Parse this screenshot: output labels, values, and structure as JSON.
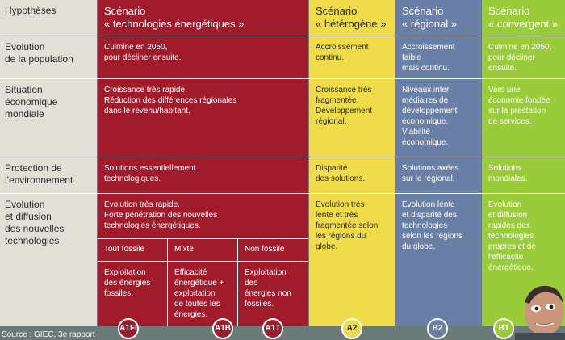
{
  "colors": {
    "hyp_bg": "#e2e0d6",
    "red": "#a01c2c",
    "yellow": "#f0dc4a",
    "blue": "#6a7fa6",
    "green": "#9acb3a",
    "page_bg": "#6a7a76",
    "grid": "#ffffff"
  },
  "header": {
    "hypotheses": "Hypothèses",
    "red": "Scénario\n« technologies énergétiques »",
    "yellow": "Scénario\n« hétérogène »",
    "blue": "Scénario\n« régional »",
    "green": "Scénario\n« convergent »"
  },
  "rows": {
    "population": {
      "label": "Evolution\nde la population",
      "red": "Culmine en 2050,\npour décliner ensuite.",
      "yellow": "Accroissement\ncontinu.",
      "blue": "Accroissement\nfaible\nmais continu.",
      "green": "Culmine en 2050,\npour décliner\nensuite."
    },
    "economy": {
      "label": "Situation\néconomique\nmondiale",
      "red": "Croissance très rapide.\nRéduction des différences régionales\ndans le revenu/habitant.",
      "yellow": "Croissance très\nfragmentée.\nDéveloppement\nrégional.",
      "blue": "Niveaux inter-\nmédiaires de\ndéveloppement\néconomique.\nViabilité\néconomique.",
      "green": "Vers une\néconomie fondée\nsur la prestation\nde services."
    },
    "environment": {
      "label": "Protection de\nl'environnement",
      "red": "Solutions essentiellement\ntechnologiques.",
      "yellow": "Disparité\ndes solutions.",
      "blue": "Solutions axées\nsur le régional.",
      "green": "Solutions\nmondiales."
    },
    "technology": {
      "label": "Evolution\net diffusion\ndes nouvelles\ntechnologies",
      "red": "Evolution très rapide.\nForte pénétration des nouvelles\ntechnologies énergétiques.",
      "yellow": "Evolution très\nlente et très\nfragmentée selon\nles régions du\nglobe.",
      "blue": "Evolution lente\net disparité  des\ntechnologies\nselon les régions\ndu globe.",
      "green": "Evolution\net diffusion\nrapides des\ntechnologies\npropres et de\nl'efficacité\nénergétique."
    }
  },
  "subscenarios": {
    "fossil": {
      "title": "Tout fossile",
      "text": "Exploitation\ndes énergies\nfossiles.",
      "badge": "A1FI"
    },
    "mixed": {
      "title": "Mixte",
      "text": "Efficacité\nénergétique +\nexploitation\nde toutes les\nénergies.",
      "badge": "A1B"
    },
    "nonfossil": {
      "title": "Non fossile",
      "text": "Exploitation\ndes\nénergies non\nfossiles.",
      "badge": "A1T"
    }
  },
  "badges": {
    "yellow": "A2",
    "blue": "B2",
    "green": "B1"
  },
  "source": "Source : GIEC, 3e rapport"
}
